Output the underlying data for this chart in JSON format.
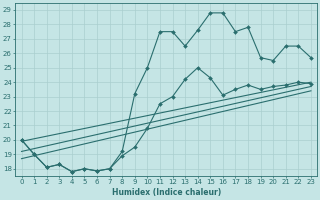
{
  "xlabel": "Humidex (Indice chaleur)",
  "xlim": [
    -0.5,
    23.5
  ],
  "ylim": [
    17.5,
    29.5
  ],
  "xticks": [
    0,
    1,
    2,
    3,
    4,
    5,
    6,
    7,
    8,
    9,
    10,
    11,
    12,
    13,
    14,
    15,
    16,
    17,
    18,
    19,
    20,
    21,
    22,
    23
  ],
  "yticks": [
    18,
    19,
    20,
    21,
    22,
    23,
    24,
    25,
    26,
    27,
    28,
    29
  ],
  "bg_color": "#c5e5e5",
  "grid_color": "#aacfcf",
  "line_color": "#2a6e6e",
  "curve_zigzag": {
    "x": [
      0,
      1,
      2,
      3,
      4,
      5,
      6,
      7,
      8,
      9,
      10,
      11,
      12,
      13,
      14,
      15,
      16,
      17,
      18,
      19,
      20,
      21,
      22,
      23
    ],
    "y": [
      20.0,
      19.0,
      18.1,
      18.3,
      17.8,
      18.0,
      17.85,
      18.0,
      18.9,
      19.5,
      20.8,
      22.5,
      23.0,
      24.2,
      25.0,
      24.3,
      23.1,
      23.5,
      23.8,
      23.5,
      23.7,
      23.8,
      24.0,
      23.9
    ]
  },
  "curve_main": {
    "x": [
      0,
      1,
      2,
      3,
      4,
      5,
      6,
      7,
      8,
      9,
      10,
      11,
      12,
      13,
      14,
      15,
      16,
      17,
      18,
      19,
      20,
      21,
      22,
      23
    ],
    "y": [
      20.0,
      19.0,
      18.1,
      18.3,
      17.8,
      18.0,
      17.85,
      18.0,
      19.2,
      23.2,
      25.0,
      27.5,
      27.5,
      26.5,
      27.6,
      28.8,
      28.8,
      27.5,
      27.8,
      25.7,
      25.5,
      26.5,
      26.5,
      25.7
    ]
  },
  "straight_lines": [
    {
      "x0": 0,
      "y0": 19.9,
      "x1": 23,
      "y1": 24.0
    },
    {
      "x0": 0,
      "y0": 19.2,
      "x1": 23,
      "y1": 23.7
    },
    {
      "x0": 0,
      "y0": 18.7,
      "x1": 23,
      "y1": 23.4
    }
  ]
}
